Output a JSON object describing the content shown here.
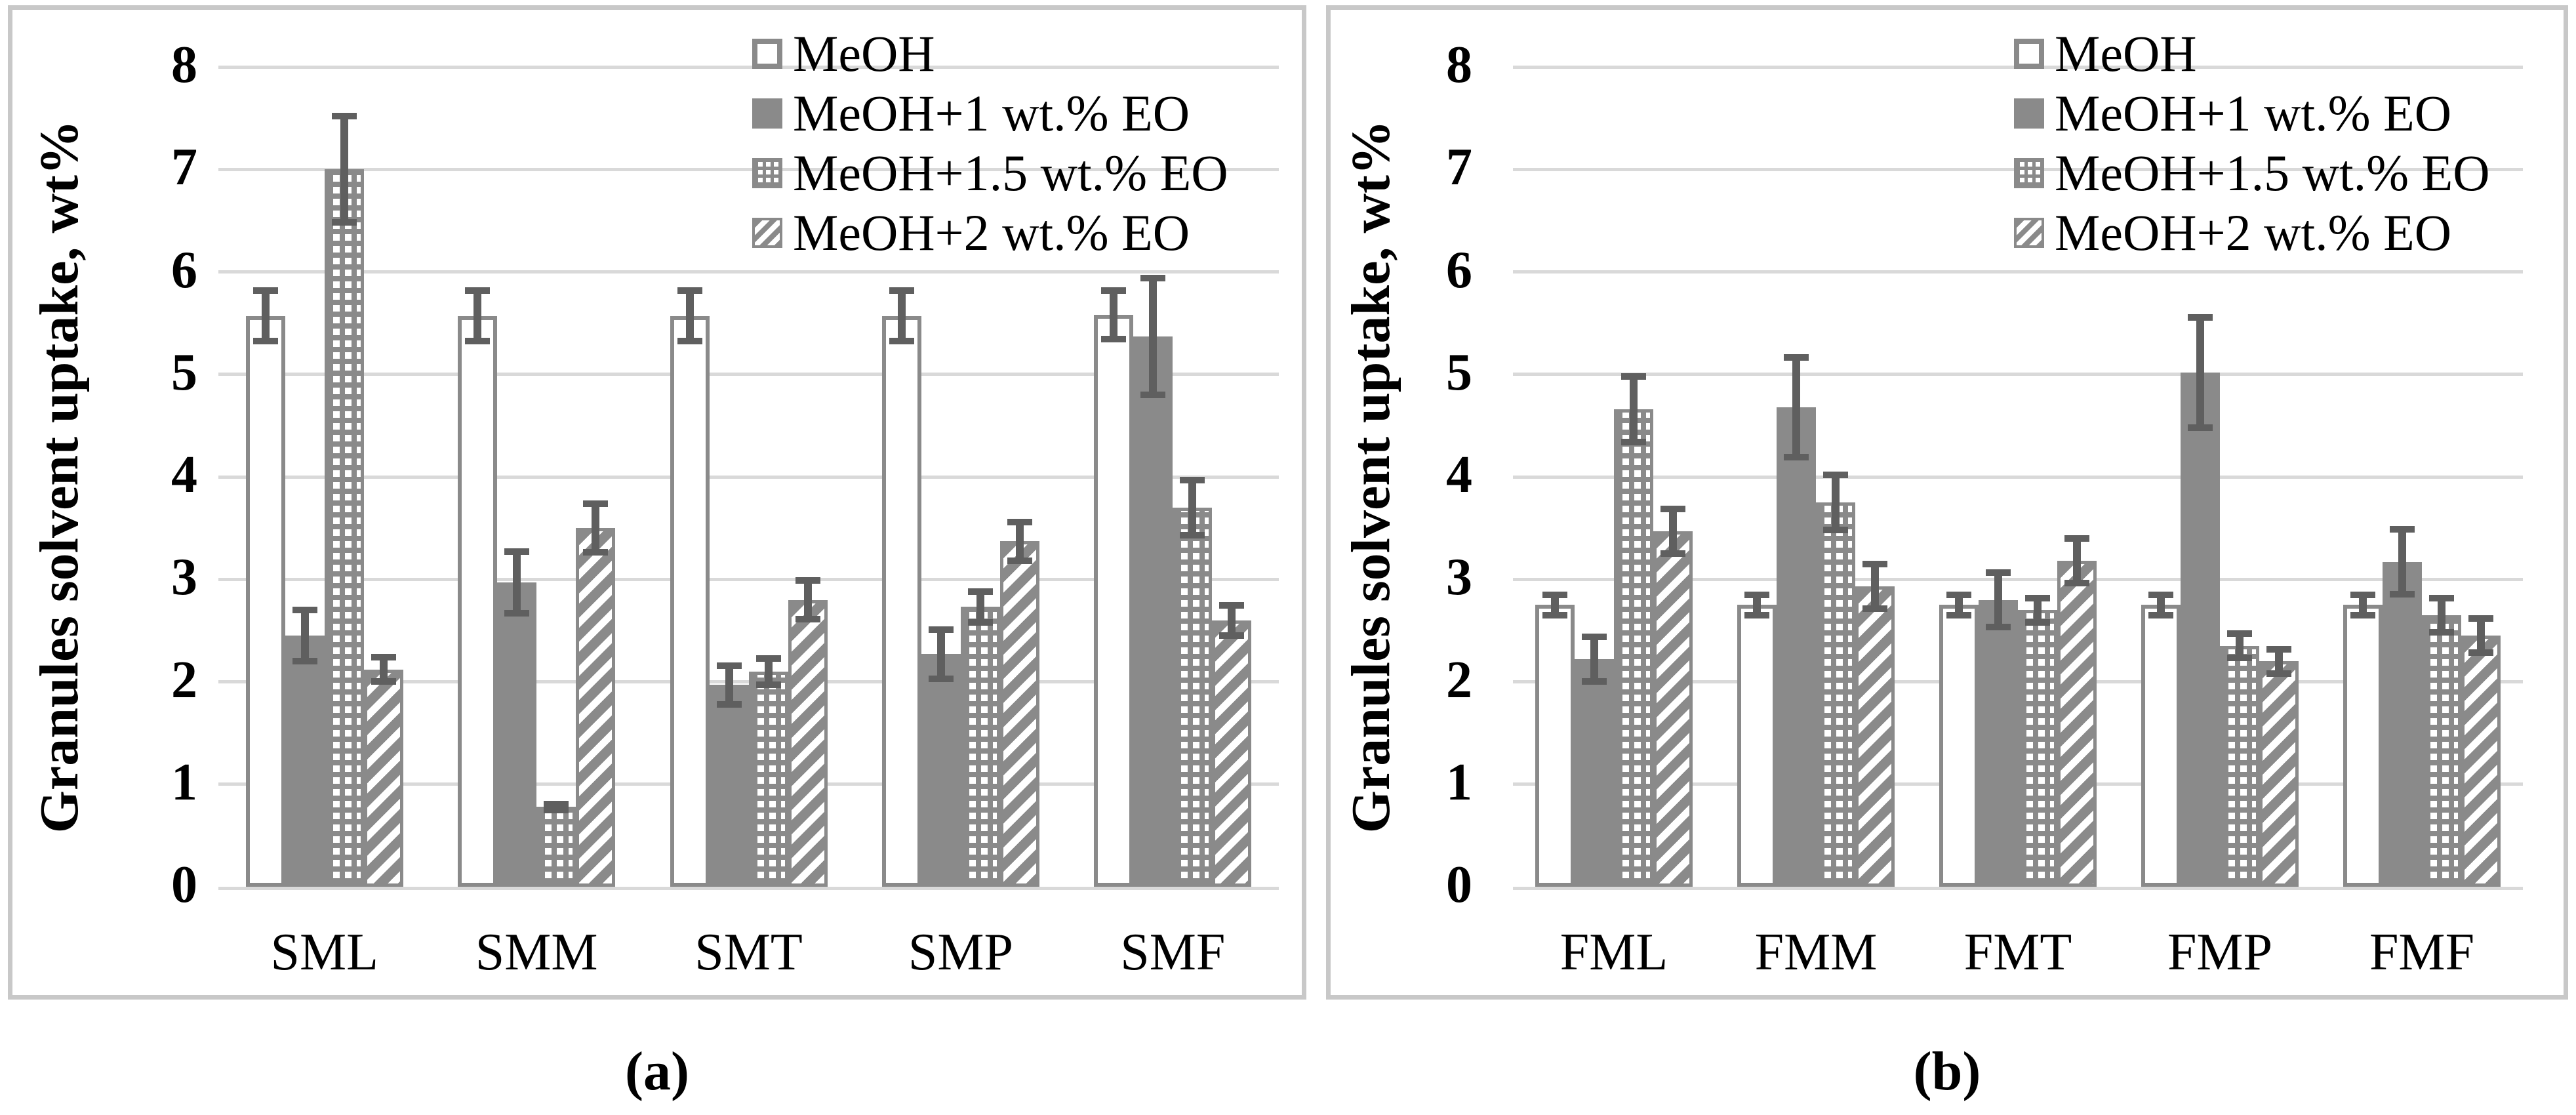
{
  "figure": {
    "captions": [
      "(a)",
      "(b)"
    ],
    "ylabel": "Granules solvent uptake, wt%"
  },
  "colors": {
    "bar_gray": "#8a8a8a",
    "error_bar": "#5f5f5f",
    "gridline": "#d9d9d9",
    "panel_border": "#c8c8c8",
    "text": "#000000",
    "background": "#ffffff"
  },
  "legend": {
    "items": [
      {
        "label": "MeOH",
        "pattern": "outline",
        "swatch_icon": "white-outline-square"
      },
      {
        "label": "MeOH+1 wt.% EO",
        "pattern": "solid",
        "swatch_icon": "solid-gray-square"
      },
      {
        "label": "MeOH+1.5 wt.% EO",
        "pattern": "dotted",
        "swatch_icon": "dotted-gray-square"
      },
      {
        "label": "MeOH+2 wt.% EO",
        "pattern": "hatch",
        "swatch_icon": "diagonal-hatch-square"
      }
    ],
    "position": "inside-top-right"
  },
  "chart_data": [
    {
      "type": "bar",
      "panel": "a",
      "caption": "(a)",
      "title": "",
      "xlabel": "",
      "ylabel": "Granules solvent uptake, wt%",
      "ylim": [
        0,
        8
      ],
      "yticks": [
        0,
        1,
        2,
        3,
        4,
        5,
        6,
        7,
        8
      ],
      "grid": true,
      "legend_position": "inside-top-right",
      "categories": [
        "SML",
        "SMM",
        "SMT",
        "SMP",
        "SMF"
      ],
      "series": [
        {
          "name": "MeOH",
          "pattern": "outline",
          "values": [
            5.57,
            5.57,
            5.57,
            5.57,
            5.58
          ],
          "errors": [
            0.28,
            0.28,
            0.28,
            0.28,
            0.27
          ]
        },
        {
          "name": "MeOH+1 wt.% EO",
          "pattern": "solid",
          "values": [
            2.45,
            2.97,
            1.97,
            2.27,
            5.37
          ],
          "errors": [
            0.28,
            0.33,
            0.22,
            0.27,
            0.6
          ]
        },
        {
          "name": "MeOH+1.5 wt.% EO",
          "pattern": "dotted",
          "values": [
            7.0,
            0.78,
            2.1,
            2.73,
            3.7
          ],
          "errors": [
            0.55,
            0.06,
            0.16,
            0.18,
            0.3
          ]
        },
        {
          "name": "MeOH+2 wt.% EO",
          "pattern": "hatch",
          "values": [
            2.12,
            3.5,
            2.8,
            3.37,
            2.6
          ],
          "errors": [
            0.15,
            0.27,
            0.22,
            0.22,
            0.18
          ]
        }
      ]
    },
    {
      "type": "bar",
      "panel": "b",
      "caption": "(b)",
      "title": "",
      "xlabel": "",
      "ylabel": "Granules solvent uptake, wt%",
      "ylim": [
        0,
        8
      ],
      "yticks": [
        0,
        1,
        2,
        3,
        4,
        5,
        6,
        7,
        8
      ],
      "grid": true,
      "legend_position": "inside-top-right",
      "categories": [
        "FML",
        "FMM",
        "FMT",
        "FMP",
        "FMF"
      ],
      "series": [
        {
          "name": "MeOH",
          "pattern": "outline",
          "values": [
            2.75,
            2.75,
            2.75,
            2.75,
            2.75
          ],
          "errors": [
            0.13,
            0.13,
            0.13,
            0.13,
            0.13
          ]
        },
        {
          "name": "MeOH+1 wt.% EO",
          "pattern": "solid",
          "values": [
            2.22,
            4.68,
            2.8,
            5.02,
            3.17
          ],
          "errors": [
            0.25,
            0.52,
            0.3,
            0.57,
            0.35
          ]
        },
        {
          "name": "MeOH+1.5 wt.% EO",
          "pattern": "dotted",
          "values": [
            4.66,
            3.75,
            2.7,
            2.35,
            2.65
          ],
          "errors": [
            0.35,
            0.3,
            0.15,
            0.15,
            0.2
          ]
        },
        {
          "name": "MeOH+2 wt.% EO",
          "pattern": "hatch",
          "values": [
            3.47,
            2.93,
            3.18,
            2.2,
            2.45
          ],
          "errors": [
            0.25,
            0.25,
            0.25,
            0.15,
            0.2
          ]
        }
      ]
    }
  ]
}
